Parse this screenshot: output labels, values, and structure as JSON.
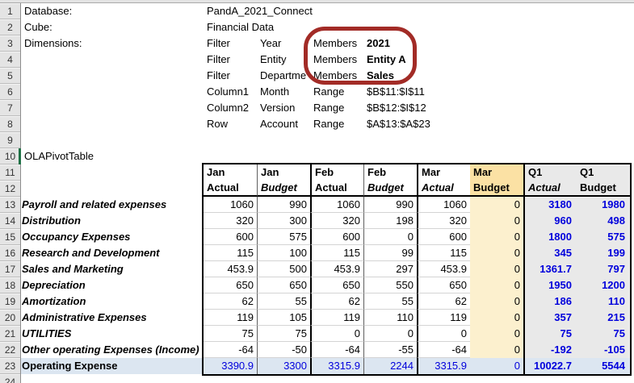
{
  "connection_info": {
    "rows": [
      {
        "row": 1,
        "a": "Database:",
        "b": "PandA_2021_Connect"
      },
      {
        "row": 2,
        "a": "Cube:",
        "b": "Financial Data"
      },
      {
        "row": 3,
        "a": "Dimensions:",
        "b": "Filter",
        "c": "Year",
        "d": "Members",
        "e": "2021",
        "e_bold": true
      },
      {
        "row": 4,
        "b": "Filter",
        "c": "Entity",
        "d": "Members",
        "e": "Entity A",
        "e_bold": true
      },
      {
        "row": 5,
        "b": "Filter",
        "c": "Departme",
        "d": "Members",
        "e": "Sales",
        "e_bold": true
      },
      {
        "row": 6,
        "b": "Column1",
        "c": "Month",
        "d": "Range",
        "e": "$B$11:$I$11"
      },
      {
        "row": 7,
        "b": "Column2",
        "c": "Version",
        "d": "Range",
        "e": "$B$12:$I$12"
      },
      {
        "row": 8,
        "b": "Row",
        "c": "Account",
        "d": "Range",
        "e": "$A$13:$A$23"
      },
      {
        "row": 10,
        "a": "OLAPivotTable"
      }
    ]
  },
  "row_numbers": [
    "1",
    "2",
    "3",
    "4",
    "5",
    "6",
    "7",
    "8",
    "9",
    "10",
    "11",
    "12",
    "13",
    "14",
    "15",
    "16",
    "17",
    "18",
    "19",
    "20",
    "21",
    "22",
    "23",
    "24"
  ],
  "pivot": {
    "columns": [
      {
        "period": "Jan",
        "version": "Actual",
        "fill": "white",
        "italic": false
      },
      {
        "period": "Jan",
        "version": "Budget",
        "fill": "white",
        "italic": true
      },
      {
        "period": "Feb",
        "version": "Actual",
        "fill": "white",
        "italic": false
      },
      {
        "period": "Feb",
        "version": "Budget",
        "fill": "white",
        "italic": true
      },
      {
        "period": "Mar",
        "version": "Actual",
        "fill": "white",
        "italic": true
      },
      {
        "period": "Mar",
        "version": "Budget",
        "fill": "tan",
        "italic": false
      },
      {
        "period": "Q1",
        "version": "Actual",
        "fill": "gray",
        "italic": true
      },
      {
        "period": "Q1",
        "version": "Budget",
        "fill": "gray",
        "italic": false
      }
    ],
    "rows": [
      {
        "account": "Payroll and related expenses",
        "values": [
          "1060",
          "990",
          "1060",
          "990",
          "1060",
          "0",
          "3180",
          "1980"
        ]
      },
      {
        "account": "Distribution",
        "values": [
          "320",
          "300",
          "320",
          "198",
          "320",
          "0",
          "960",
          "498"
        ]
      },
      {
        "account": "Occupancy Expenses",
        "values": [
          "600",
          "575",
          "600",
          "0",
          "600",
          "0",
          "1800",
          "575"
        ]
      },
      {
        "account": "Research and Development",
        "values": [
          "115",
          "100",
          "115",
          "99",
          "115",
          "0",
          "345",
          "199"
        ]
      },
      {
        "account": "Sales and Marketing",
        "values": [
          "453.9",
          "500",
          "453.9",
          "297",
          "453.9",
          "0",
          "1361.7",
          "797"
        ]
      },
      {
        "account": "Depreciation",
        "values": [
          "650",
          "650",
          "650",
          "550",
          "650",
          "0",
          "1950",
          "1200"
        ]
      },
      {
        "account": "Amortization",
        "values": [
          "62",
          "55",
          "62",
          "55",
          "62",
          "0",
          "186",
          "110"
        ]
      },
      {
        "account": "Administrative Expenses",
        "values": [
          "119",
          "105",
          "119",
          "110",
          "119",
          "0",
          "357",
          "215"
        ]
      },
      {
        "account": "UTILITIES",
        "values": [
          "75",
          "75",
          "0",
          "0",
          "0",
          "0",
          "75",
          "75"
        ]
      },
      {
        "account": "Other operating Expenses (Income)",
        "values": [
          "-64",
          "-50",
          "-64",
          "-55",
          "-64",
          "0",
          "-192",
          "-105"
        ]
      }
    ],
    "total_row": {
      "account": "Operating Expense",
      "values": [
        "3390.9",
        "3300",
        "3315.9",
        "2244",
        "3315.9",
        "0",
        "10022.7",
        "5544"
      ]
    }
  },
  "annotation": {
    "shape": "hand-drawn-oval",
    "around": "Members values 2021 / Entity A / Sales"
  },
  "colors": {
    "total_row_fill": "#DCE6F1",
    "mar_budget_header_fill": "#FBE1A4",
    "mar_budget_data_fill": "#FCF0CE",
    "q1_fill": "#E9E9E9",
    "value_blue": "#0000DC",
    "annotation_red": "#A22B26",
    "marker_green": "#1E7145"
  }
}
